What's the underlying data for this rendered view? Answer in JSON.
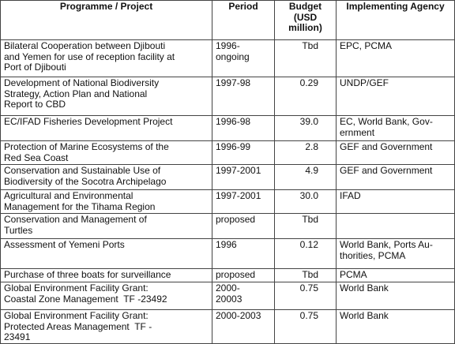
{
  "table": {
    "header": [
      [
        "Programme / Project"
      ],
      [
        "Period"
      ],
      [
        "Budget",
        "(USD",
        "million)"
      ],
      [
        "Implementing Agency"
      ]
    ],
    "rows": [
      [
        [
          "Bilateral Cooperation between Djibouti",
          "and Yemen for use of reception facility at",
          "Port of Djibouti"
        ],
        [
          "1996-",
          "ongoing"
        ],
        [
          "Tbd"
        ],
        [
          "EPC, PCMA"
        ]
      ],
      [
        [
          "Development of National Biodiversity",
          "Strategy, Action Plan and National",
          "Report to CBD"
        ],
        [
          "1997-98"
        ],
        [
          "0.29"
        ],
        [
          "UNDP/GEF"
        ]
      ],
      [
        [
          "EC/IFAD Fisheries Development Project"
        ],
        [
          "1996-98"
        ],
        [
          "39.0"
        ],
        [
          "EC, World Bank, Gov-",
          "ernment"
        ]
      ],
      [
        [
          "Protection of Marine Ecosystems of the",
          "Red Sea Coast"
        ],
        [
          "1996-99"
        ],
        [
          "2.8"
        ],
        [
          "GEF and Government"
        ]
      ],
      [
        [
          "Conservation and Sustainable Use of",
          "Biodiversity of the Socotra Archipelago"
        ],
        [
          "1997-2001"
        ],
        [
          "4.9"
        ],
        [
          "GEF and Government"
        ]
      ],
      [
        [
          "Agricultural and Environmental",
          "Management for the Tihama Region"
        ],
        [
          "1997-2001"
        ],
        [
          "30.0"
        ],
        [
          "IFAD"
        ]
      ],
      [
        [
          "Conservation and Management of",
          "Turtles"
        ],
        [
          "proposed"
        ],
        [
          "Tbd"
        ],
        []
      ],
      [
        [
          "Assessment of Yemeni Ports"
        ],
        [
          "1996"
        ],
        [
          "0.12"
        ],
        [
          "World Bank, Ports Au-",
          "thorities, PCMA"
        ]
      ],
      [
        [
          "Purchase of three boats for surveillance"
        ],
        [
          "proposed"
        ],
        [
          "Tbd"
        ],
        [
          "PCMA"
        ]
      ],
      [
        [
          "Global Environment Facility Grant:",
          "Coastal Zone Management  TF -23492"
        ],
        [
          "2000-",
          "20003"
        ],
        [
          "0.75"
        ],
        [
          "World Bank"
        ]
      ],
      [
        [
          "Global Environment Facility Grant:",
          "Protected Areas Management  TF -",
          "23491"
        ],
        [
          "2000-2003"
        ],
        [
          "0.75"
        ],
        [
          "World Bank"
        ]
      ]
    ]
  }
}
